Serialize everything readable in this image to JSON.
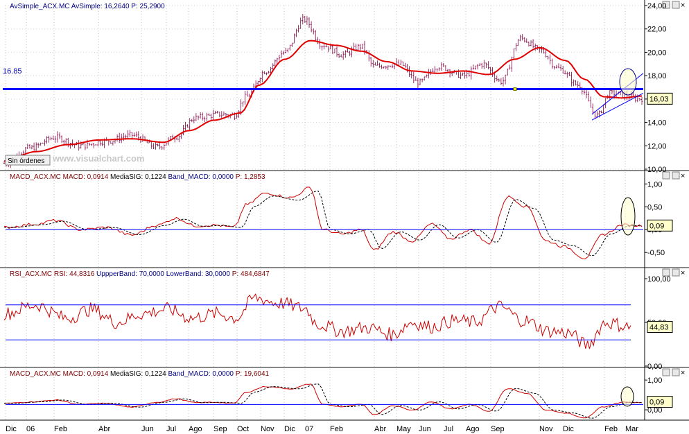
{
  "colors": {
    "price_bars": "#800040",
    "ma_line": "#e00000",
    "h_line": "#0000ff",
    "panel_line": "#0000ff",
    "macd_line": "#cc0000",
    "signal_line": "#000000",
    "rsi_line": "#cc0000",
    "axis_bg": "#ffffff",
    "separator": "#aaaaaa",
    "badge_bg": "#ffffcc",
    "watermark": "#c8c8c8"
  },
  "panels": [
    {
      "id": "price",
      "header": [
        {
          "t": "AvSimple_ACX.MC",
          "c": "#000080"
        },
        {
          "t": "  AvSimple: 16,2640",
          "c": "#000080"
        },
        {
          "t": "  P: 25,2900",
          "c": "#000080"
        }
      ]
    },
    {
      "id": "macd1",
      "header": [
        {
          "t": "MACD_ACX.MC",
          "c": "#800000"
        },
        {
          "t": "  MACD: 0,0914",
          "c": "#800000"
        },
        {
          "t": "  MediaSIG: 0,1224",
          "c": "#000000"
        },
        {
          "t": "  Band_MACD: 0,0000",
          "c": "#000080"
        },
        {
          "t": "  P: 1,2853",
          "c": "#800000"
        }
      ]
    },
    {
      "id": "rsi",
      "header": [
        {
          "t": "RSI_ACX.MC",
          "c": "#800000"
        },
        {
          "t": "  RSI: 44,8316",
          "c": "#800000"
        },
        {
          "t": "  UppperBand: 70,0000",
          "c": "#000080"
        },
        {
          "t": "  LowerBand: 30,0000",
          "c": "#000080"
        },
        {
          "t": "  P: 484,6847",
          "c": "#800000"
        }
      ]
    },
    {
      "id": "macd2",
      "header": [
        {
          "t": "MACD_ACX.MC",
          "c": "#800000"
        },
        {
          "t": "  MACD: 0,0914",
          "c": "#800000"
        },
        {
          "t": "  MediaSIG: 0,1224",
          "c": "#000000"
        },
        {
          "t": "  Band_MACD: 0,0000",
          "c": "#000080"
        },
        {
          "t": "  P: 19,6041",
          "c": "#800000"
        }
      ]
    }
  ],
  "price_axis_ticks": [
    "24,00",
    "22,00",
    "20,00",
    "18,00",
    "16,00",
    "14,00",
    "12,00",
    "10,00"
  ],
  "macd_axis_ticks": [
    "1,00",
    "0,50",
    "0,00",
    "-0,50"
  ],
  "rsi_axis_ticks": [
    "100,00",
    "50,00",
    "0,00"
  ],
  "macd2_axis_ticks": [
    "1,00",
    "0,00"
  ],
  "x_labels": [
    "Dic",
    "06",
    "Feb",
    "Abr",
    "Jun",
    "Jul",
    "Ago",
    "Sep",
    "Oct",
    "Nov",
    "Dic",
    "07",
    "Feb",
    "Abr",
    "May",
    "Jun",
    "Jul",
    "Ago",
    "Sep",
    "Nov",
    "Dic",
    "Feb",
    "Mar"
  ],
  "price_badge": "16,03",
  "macd_badge": "0,09",
  "rsi_badge": "44,83",
  "macd2_badge": "0,09",
  "hline_label": "16.85",
  "sin_ordenes": "Sin órdenes",
  "watermark": "www.visualchart.com",
  "close_glyph": "×",
  "chart_data": {
    "type": "line",
    "x": [
      "Dic",
      "06",
      "Feb",
      "Abr",
      "Jun",
      "Jul",
      "Ago",
      "Sep",
      "Oct",
      "Nov",
      "Dic",
      "07",
      "Feb",
      "Abr",
      "May",
      "Jun",
      "Jul",
      "Ago",
      "Sep",
      "Nov",
      "Dic",
      "Feb",
      "Mar"
    ],
    "price_ylim": [
      10,
      24
    ],
    "horizontal_line": 16.85,
    "price_keypoints": [
      [
        0,
        10.5
      ],
      [
        0.04,
        11.8
      ],
      [
        0.08,
        12.7
      ],
      [
        0.12,
        12.0
      ],
      [
        0.16,
        12.4
      ],
      [
        0.2,
        12.9
      ],
      [
        0.24,
        11.9
      ],
      [
        0.27,
        12.8
      ],
      [
        0.3,
        14.4
      ],
      [
        0.34,
        14.7
      ],
      [
        0.36,
        14.6
      ],
      [
        0.38,
        16.2
      ],
      [
        0.41,
        18.4
      ],
      [
        0.44,
        20.0
      ],
      [
        0.47,
        22.8
      ],
      [
        0.5,
        20.6
      ],
      [
        0.53,
        19.8
      ],
      [
        0.56,
        20.5
      ],
      [
        0.58,
        18.8
      ],
      [
        0.62,
        19.0
      ],
      [
        0.65,
        17.4
      ],
      [
        0.68,
        18.8
      ],
      [
        0.72,
        18.0
      ],
      [
        0.75,
        19.0
      ],
      [
        0.78,
        17.5
      ],
      [
        0.81,
        21.2
      ],
      [
        0.84,
        20.2
      ],
      [
        0.87,
        18.6
      ],
      [
        0.9,
        17.2
      ],
      [
        0.93,
        14.6
      ],
      [
        0.95,
        16.5
      ],
      [
        1.0,
        16.03
      ]
    ],
    "ma_keypoints": [
      [
        0,
        10.7
      ],
      [
        0.05,
        11.5
      ],
      [
        0.1,
        12.1
      ],
      [
        0.15,
        12.5
      ],
      [
        0.2,
        12.6
      ],
      [
        0.25,
        12.3
      ],
      [
        0.29,
        13.3
      ],
      [
        0.33,
        14.2
      ],
      [
        0.37,
        14.8
      ],
      [
        0.4,
        17.2
      ],
      [
        0.44,
        19.4
      ],
      [
        0.48,
        21.0
      ],
      [
        0.52,
        20.6
      ],
      [
        0.56,
        20.1
      ],
      [
        0.6,
        19.2
      ],
      [
        0.64,
        18.4
      ],
      [
        0.68,
        18.2
      ],
      [
        0.72,
        18.4
      ],
      [
        0.76,
        18.1
      ],
      [
        0.8,
        19.4
      ],
      [
        0.84,
        20.4
      ],
      [
        0.88,
        19.3
      ],
      [
        0.91,
        17.7
      ],
      [
        0.94,
        16.2
      ],
      [
        0.97,
        16.1
      ],
      [
        1.0,
        16.26
      ]
    ],
    "macd_ylim": [
      -0.8,
      1.05
    ],
    "macd_keypoints": [
      [
        0,
        0.05
      ],
      [
        0.05,
        0.12
      ],
      [
        0.08,
        0.2
      ],
      [
        0.12,
        0.0
      ],
      [
        0.16,
        0.05
      ],
      [
        0.2,
        -0.12
      ],
      [
        0.24,
        0.1
      ],
      [
        0.27,
        0.25
      ],
      [
        0.3,
        0.08
      ],
      [
        0.33,
        0.1
      ],
      [
        0.36,
        0.05
      ],
      [
        0.38,
        0.55
      ],
      [
        0.41,
        0.8
      ],
      [
        0.45,
        0.7
      ],
      [
        0.48,
        0.92
      ],
      [
        0.5,
        0.0
      ],
      [
        0.53,
        -0.1
      ],
      [
        0.56,
        0.0
      ],
      [
        0.58,
        -0.45
      ],
      [
        0.61,
        -0.05
      ],
      [
        0.64,
        -0.25
      ],
      [
        0.67,
        0.12
      ],
      [
        0.7,
        -0.2
      ],
      [
        0.73,
        0.0
      ],
      [
        0.76,
        -0.3
      ],
      [
        0.79,
        0.72
      ],
      [
        0.82,
        0.5
      ],
      [
        0.85,
        -0.25
      ],
      [
        0.88,
        -0.38
      ],
      [
        0.91,
        -0.62
      ],
      [
        0.94,
        -0.1
      ],
      [
        0.97,
        0.1
      ],
      [
        1.0,
        0.09
      ]
    ],
    "rsi_ylim": [
      0,
      100
    ],
    "rsi_bands": [
      30,
      70
    ],
    "rsi_keypoints": [
      [
        0,
        60
      ],
      [
        0.05,
        70
      ],
      [
        0.1,
        55
      ],
      [
        0.14,
        65
      ],
      [
        0.18,
        50
      ],
      [
        0.22,
        60
      ],
      [
        0.26,
        65
      ],
      [
        0.3,
        55
      ],
      [
        0.34,
        60
      ],
      [
        0.37,
        55
      ],
      [
        0.4,
        78
      ],
      [
        0.44,
        72
      ],
      [
        0.48,
        66
      ],
      [
        0.5,
        48
      ],
      [
        0.54,
        40
      ],
      [
        0.58,
        44
      ],
      [
        0.62,
        36
      ],
      [
        0.65,
        50
      ],
      [
        0.68,
        45
      ],
      [
        0.72,
        52
      ],
      [
        0.75,
        50
      ],
      [
        0.79,
        68
      ],
      [
        0.83,
        52
      ],
      [
        0.87,
        40
      ],
      [
        0.9,
        38
      ],
      [
        0.93,
        24
      ],
      [
        0.96,
        50
      ],
      [
        1.0,
        44.83
      ]
    ]
  }
}
